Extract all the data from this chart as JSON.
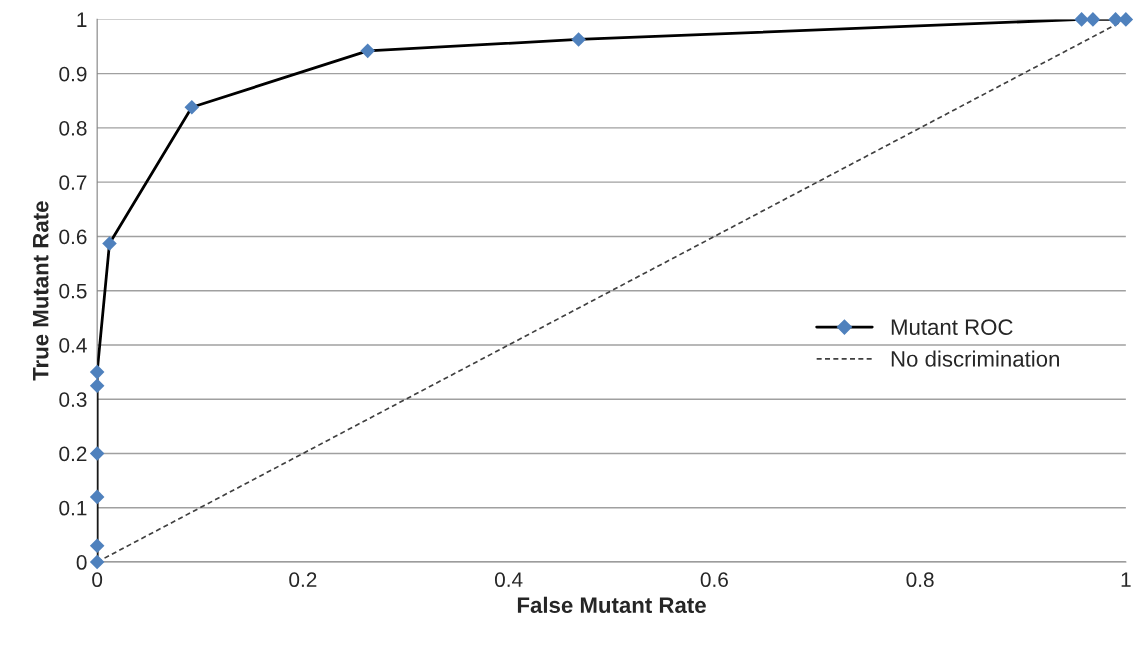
{
  "chart_data": {
    "type": "line",
    "xlabel": "False Mutant Rate",
    "ylabel": "True Mutant Rate",
    "xlim": [
      0,
      1
    ],
    "ylim": [
      0,
      1
    ],
    "xticks": [
      0,
      0.2,
      0.4,
      0.6,
      0.8,
      1
    ],
    "yticks": [
      0,
      0.1,
      0.2,
      0.3,
      0.4,
      0.5,
      0.6,
      0.7,
      0.8,
      0.9,
      1
    ],
    "grid": "y",
    "legend": "right",
    "series": [
      {
        "name": "Mutant ROC",
        "color": "#000000",
        "colors": [
          "#4f81bd",
          "#4f81bd",
          "#4f81bd",
          "#4f81bd",
          "#4f81bd",
          "#4f81bd",
          "#4f81bd",
          "#4f81bd",
          "#4f81bd",
          "#4f81bd",
          "#4f81bd",
          "#4f81bd",
          "#4f81bd",
          "#4f81bd"
        ],
        "marker": "diamond",
        "line_style": "solid",
        "x": [
          0,
          0,
          0,
          0,
          0,
          0,
          0.012,
          0.092,
          0.263,
          0.468,
          0.957,
          0.968,
          0.99,
          1
        ],
        "values": [
          0,
          0.03,
          0.12,
          0.2,
          0.325,
          0.35,
          0.587,
          0.838,
          0.942,
          0.963,
          1,
          1,
          1,
          1
        ]
      },
      {
        "name": "No discrimination",
        "color": "#404040",
        "marker": "none",
        "line_style": "dashed",
        "x": [
          0,
          1
        ],
        "values": [
          0,
          1
        ]
      }
    ]
  }
}
